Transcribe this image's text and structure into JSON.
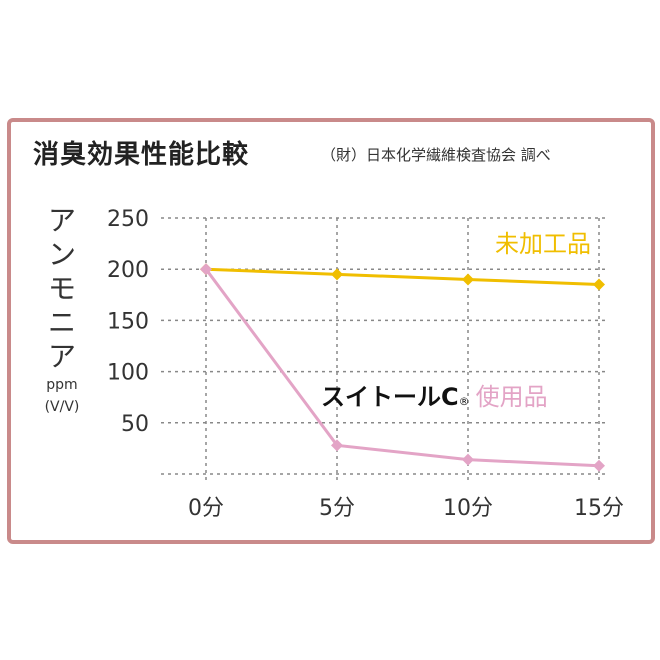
{
  "title": "消臭効果性能比較",
  "source": "（財）日本化学繊維検査協会 調べ",
  "ylabel_lines": [
    "ア",
    "ン",
    "モ",
    "ニ",
    "ア"
  ],
  "yunit_lines": [
    "ppm",
    "(V/V)"
  ],
  "chart_data": {
    "type": "line",
    "x": [
      "0分",
      "5分",
      "10分",
      "15分"
    ],
    "yticks": [
      250,
      200,
      150,
      100,
      50
    ],
    "ylim": [
      0,
      250
    ],
    "grid": true,
    "series": [
      {
        "name": "未加工品",
        "color": "#f0be00",
        "values": [
          200,
          195,
          190,
          185
        ]
      },
      {
        "name": "スイトールC® 使用品",
        "name_brand": "スイトールC",
        "name_reg": "®",
        "name_rest": "使用品",
        "color": "#e3a4c6",
        "values": [
          200,
          28,
          14,
          8
        ]
      }
    ]
  },
  "colors": {
    "frame": "#c98a8a",
    "grid": "#888888"
  }
}
